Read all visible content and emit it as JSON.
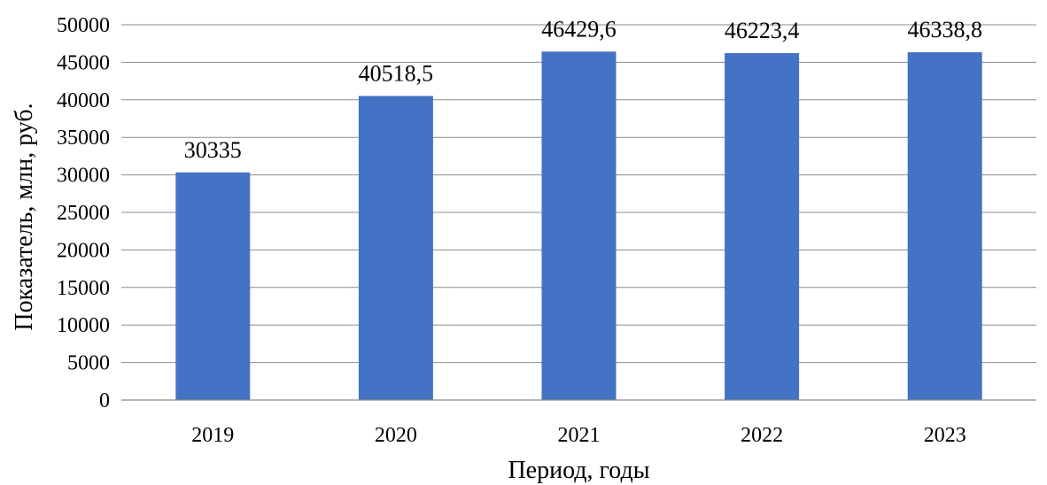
{
  "chart_data": {
    "type": "bar",
    "categories": [
      "2019",
      "2020",
      "2021",
      "2022",
      "2023"
    ],
    "values": [
      30335,
      40518.5,
      46429.6,
      46223.4,
      46338.8
    ],
    "data_labels": [
      "30335",
      "40518,5",
      "46429,6",
      "46223,4",
      "46338,8"
    ],
    "y_ticks": [
      0,
      5000,
      10000,
      15000,
      20000,
      25000,
      30000,
      35000,
      40000,
      45000,
      50000
    ],
    "ylim": [
      0,
      50000
    ],
    "xlabel": "Период, годы",
    "ylabel": "Показатель, млн, руб.",
    "grid": true,
    "legend": "none",
    "bar_color": "#4472c4"
  }
}
